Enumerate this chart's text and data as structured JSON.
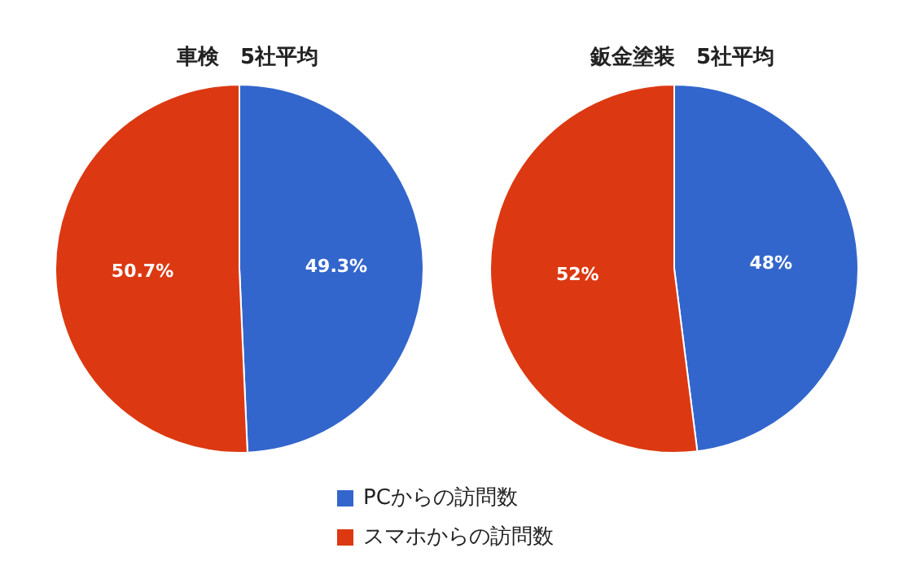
{
  "chart_data": [
    {
      "type": "pie",
      "title": "車検　5社平均",
      "categories": [
        "PCからの訪問数",
        "スマホからの訪問数"
      ],
      "values": [
        49.3,
        50.7
      ],
      "colors": [
        "#3366cc",
        "#dc3912"
      ],
      "value_labels": [
        "49.3%",
        "50.7%"
      ],
      "legend": "bottom"
    },
    {
      "type": "pie",
      "title": "鈑金塗装　5社平均",
      "categories": [
        null,
        null
      ],
      "values": [
        48,
        52
      ],
      "colors": [
        "#3366cc",
        "#dc3912"
      ],
      "value_labels": [
        "48%",
        "52%"
      ]
    }
  ]
}
